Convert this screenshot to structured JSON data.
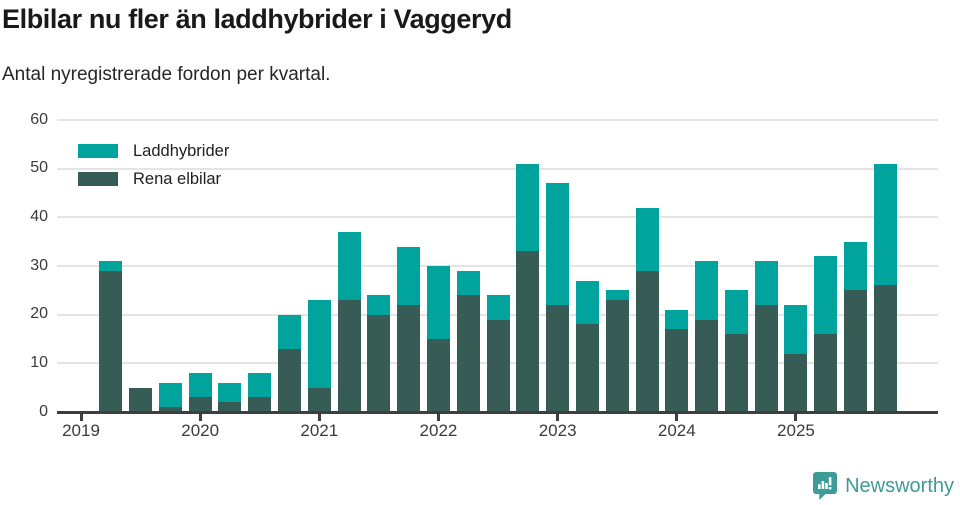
{
  "title": "Elbilar nu fler än laddhybrider i Vaggeryd",
  "subtitle": "Antal nyregistrerade fordon per kvartal.",
  "legend": [
    {
      "label": "Laddhybrider",
      "color": "#00a49c"
    },
    {
      "label": "Rena elbilar",
      "color": "#375c55"
    }
  ],
  "footer": {
    "brand": "Newsworthy",
    "brand_color": "#3d9b98"
  },
  "chart_data": {
    "type": "bar",
    "stacked": true,
    "title": "Elbilar nu fler än laddhybrider i Vaggeryd",
    "subtitle": "Antal nyregistrerade fordon per kvartal.",
    "xlabel": "",
    "ylabel": "",
    "ylim": [
      0,
      60
    ],
    "y_ticks": [
      0,
      10,
      20,
      30,
      40,
      50,
      60
    ],
    "x_year_labels": [
      "2019",
      "2020",
      "2021",
      "2022",
      "2023",
      "2024",
      "2025"
    ],
    "grid": true,
    "legend_position": "top-left",
    "categories": [
      "2019 Q2",
      "2019 Q3",
      "2019 Q4",
      "2020 Q1",
      "2020 Q2",
      "2020 Q3",
      "2020 Q4",
      "2021 Q1",
      "2021 Q2",
      "2021 Q3",
      "2021 Q4",
      "2022 Q1",
      "2022 Q2",
      "2022 Q3",
      "2022 Q4",
      "2023 Q1",
      "2023 Q2",
      "2023 Q3",
      "2023 Q4",
      "2024 Q1",
      "2024 Q2",
      "2024 Q3",
      "2024 Q4",
      "2025 Q1",
      "2025 Q2",
      "2025 Q3",
      "2025 Q4"
    ],
    "series": [
      {
        "name": "Laddhybrider",
        "color": "#00a49c",
        "values": [
          2,
          0,
          5,
          5,
          4,
          5,
          7,
          18,
          14,
          4,
          12,
          15,
          5,
          5,
          18,
          25,
          9,
          2,
          13,
          4,
          12,
          9,
          9,
          10,
          16,
          10,
          25
        ]
      },
      {
        "name": "Rena elbilar",
        "color": "#375c55",
        "values": [
          29,
          5,
          1,
          3,
          2,
          3,
          13,
          5,
          23,
          20,
          22,
          15,
          24,
          19,
          33,
          22,
          18,
          23,
          29,
          17,
          19,
          16,
          22,
          12,
          16,
          25,
          26
        ]
      }
    ],
    "totals": [
      31,
      5,
      6,
      8,
      6,
      8,
      20,
      23,
      37,
      24,
      34,
      30,
      29,
      24,
      51,
      47,
      27,
      25,
      42,
      21,
      31,
      25,
      31,
      22,
      32,
      35,
      51
    ]
  }
}
